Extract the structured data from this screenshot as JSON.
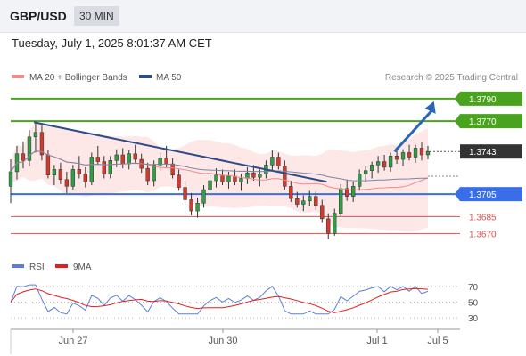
{
  "header": {
    "symbol": "GBP/USD",
    "timeframe": "30 MIN"
  },
  "datetime": "Tuesday, July 1, 2025 8:01:37 AM CET",
  "legend": {
    "bollinger": {
      "label": "MA 20 + Bollinger Bands",
      "color": "#f28b8b"
    },
    "ma50": {
      "label": "MA 50",
      "color": "#2c4d86"
    }
  },
  "copyright": "Research © 2025 Trading Central",
  "rsi_legend": {
    "rsi": {
      "label": "RSI",
      "color": "#5b7fd6"
    },
    "ma9": {
      "label": "9MA",
      "color": "#e02020"
    }
  },
  "chart_data": {
    "type": "candlestick",
    "y_range": [
      1.3656,
      1.3801
    ],
    "price_levels": [
      {
        "value": "1.3790",
        "kind": "resistance",
        "color": "#4aa31e"
      },
      {
        "value": "1.3770",
        "kind": "resistance",
        "color": "#4aa31e"
      },
      {
        "value": "1.3743",
        "kind": "current",
        "color": "#333333"
      },
      {
        "value": "1.3705",
        "kind": "pivot",
        "color": "#3a6ee8"
      },
      {
        "value": "1.3685",
        "kind": "support",
        "color": "#d9534f"
      },
      {
        "value": "1.3670",
        "kind": "support",
        "color": "#d9534f"
      }
    ],
    "x_labels": [
      "Jun 27",
      "Jun 30",
      "Jul 1",
      "Jul 5"
    ],
    "trendline": {
      "from": {
        "x": 0.12,
        "y": 1.3769
      },
      "to": {
        "x": 0.8,
        "y": 1.3716
      }
    },
    "forecast_arrow": {
      "from": {
        "x": 0.92,
        "y": 1.3743
      },
      "to": {
        "x": 1.01,
        "y": 1.3786
      }
    },
    "candles": [
      [
        1.3712,
        1.3736,
        1.3697,
        1.3725
      ],
      [
        1.3725,
        1.3748,
        1.3718,
        1.3741
      ],
      [
        1.3741,
        1.3752,
        1.3728,
        1.3735
      ],
      [
        1.3735,
        1.3762,
        1.373,
        1.3756
      ],
      [
        1.3756,
        1.377,
        1.3742,
        1.376
      ],
      [
        1.376,
        1.3766,
        1.3735,
        1.374
      ],
      [
        1.374,
        1.3744,
        1.3719,
        1.3722
      ],
      [
        1.3722,
        1.3731,
        1.3713,
        1.3727
      ],
      [
        1.3727,
        1.3733,
        1.3714,
        1.3718
      ],
      [
        1.3718,
        1.3725,
        1.3706,
        1.3712
      ],
      [
        1.3712,
        1.3731,
        1.3709,
        1.3727
      ],
      [
        1.3727,
        1.3739,
        1.3719,
        1.3723
      ],
      [
        1.3723,
        1.3729,
        1.3711,
        1.3716
      ],
      [
        1.3716,
        1.3742,
        1.3713,
        1.3738
      ],
      [
        1.3738,
        1.3748,
        1.3731,
        1.3734
      ],
      [
        1.3734,
        1.3739,
        1.3719,
        1.3723
      ],
      [
        1.3723,
        1.3739,
        1.3719,
        1.3735
      ],
      [
        1.3735,
        1.3745,
        1.3729,
        1.374
      ],
      [
        1.374,
        1.3746,
        1.3728,
        1.3732
      ],
      [
        1.3732,
        1.3744,
        1.3727,
        1.3741
      ],
      [
        1.3741,
        1.3749,
        1.3733,
        1.3736
      ],
      [
        1.3736,
        1.3741,
        1.3724,
        1.3728
      ],
      [
        1.3728,
        1.3733,
        1.3713,
        1.3717
      ],
      [
        1.3717,
        1.3735,
        1.3712,
        1.3731
      ],
      [
        1.3731,
        1.3742,
        1.3726,
        1.3737
      ],
      [
        1.3737,
        1.3748,
        1.3729,
        1.3732
      ],
      [
        1.3732,
        1.3737,
        1.3719,
        1.3722
      ],
      [
        1.3722,
        1.3727,
        1.3708,
        1.3711
      ],
      [
        1.3711,
        1.3717,
        1.3696,
        1.37
      ],
      [
        1.37,
        1.3706,
        1.3686,
        1.369
      ],
      [
        1.369,
        1.3702,
        1.3684,
        1.3697
      ],
      [
        1.3697,
        1.3713,
        1.3693,
        1.3709
      ],
      [
        1.3709,
        1.3722,
        1.3703,
        1.3717
      ],
      [
        1.3717,
        1.3728,
        1.3711,
        1.3722
      ],
      [
        1.3722,
        1.3727,
        1.3713,
        1.3716
      ],
      [
        1.3716,
        1.3725,
        1.371,
        1.3721
      ],
      [
        1.3721,
        1.3727,
        1.3713,
        1.3716
      ],
      [
        1.3716,
        1.3723,
        1.3708,
        1.3719
      ],
      [
        1.3719,
        1.3729,
        1.3714,
        1.3724
      ],
      [
        1.3724,
        1.3731,
        1.3717,
        1.372
      ],
      [
        1.372,
        1.3727,
        1.3712,
        1.3723
      ],
      [
        1.3723,
        1.3735,
        1.3719,
        1.3731
      ],
      [
        1.3731,
        1.3744,
        1.3726,
        1.3738
      ],
      [
        1.3738,
        1.3742,
        1.3727,
        1.373
      ],
      [
        1.373,
        1.3735,
        1.3709,
        1.3712
      ],
      [
        1.3712,
        1.3717,
        1.3698,
        1.3701
      ],
      [
        1.3701,
        1.3707,
        1.3693,
        1.3696
      ],
      [
        1.3696,
        1.3704,
        1.369,
        1.3699
      ],
      [
        1.3699,
        1.3708,
        1.3694,
        1.3703
      ],
      [
        1.3703,
        1.3707,
        1.3691,
        1.3695
      ],
      [
        1.3695,
        1.37,
        1.368,
        1.3683
      ],
      [
        1.3683,
        1.3688,
        1.3665,
        1.367
      ],
      [
        1.367,
        1.3692,
        1.3668,
        1.3688
      ],
      [
        1.3688,
        1.3714,
        1.3685,
        1.371
      ],
      [
        1.371,
        1.3718,
        1.3699,
        1.3703
      ],
      [
        1.3703,
        1.3716,
        1.3698,
        1.3712
      ],
      [
        1.3712,
        1.3727,
        1.3708,
        1.3723
      ],
      [
        1.3723,
        1.373,
        1.3716,
        1.3726
      ],
      [
        1.3726,
        1.3734,
        1.3719,
        1.3731
      ],
      [
        1.3731,
        1.3739,
        1.3724,
        1.3734
      ],
      [
        1.3734,
        1.374,
        1.3726,
        1.3729
      ],
      [
        1.3729,
        1.3742,
        1.3725,
        1.3739
      ],
      [
        1.3739,
        1.3747,
        1.3732,
        1.3736
      ],
      [
        1.3736,
        1.3745,
        1.373,
        1.3742
      ],
      [
        1.3742,
        1.3749,
        1.3735,
        1.3738
      ],
      [
        1.3738,
        1.3749,
        1.3733,
        1.3746
      ],
      [
        1.3746,
        1.3751,
        1.3735,
        1.374
      ],
      [
        1.374,
        1.3748,
        1.3736,
        1.3743
      ]
    ],
    "rsi_axis": [
      "70",
      "50",
      "30"
    ],
    "rsi_range": [
      20,
      80
    ]
  }
}
